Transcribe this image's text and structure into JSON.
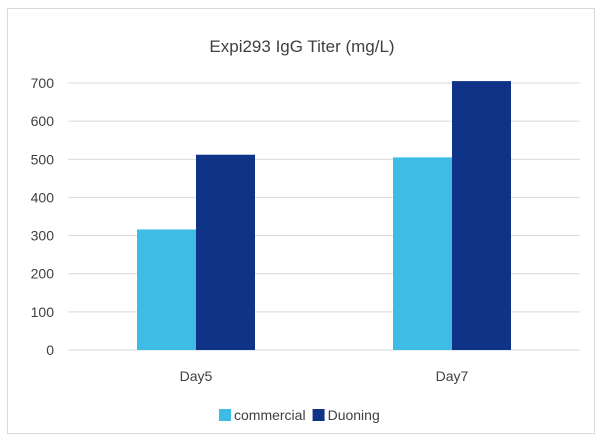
{
  "chart_data": {
    "type": "bar",
    "title": "Expi293 IgG Titer (mg/L)",
    "categories": [
      "Day5",
      "Day7"
    ],
    "series": [
      {
        "name": "commercial",
        "color": "#3dbde6",
        "values": [
          316,
          505
        ]
      },
      {
        "name": "Duoning",
        "color": "#0f3387",
        "values": [
          512,
          705
        ]
      }
    ],
    "ylim": [
      0,
      700
    ],
    "yticks": [
      0,
      100,
      200,
      300,
      400,
      500,
      600,
      700
    ],
    "grid": true,
    "legend": "bottom",
    "xlabel": "",
    "ylabel": ""
  }
}
